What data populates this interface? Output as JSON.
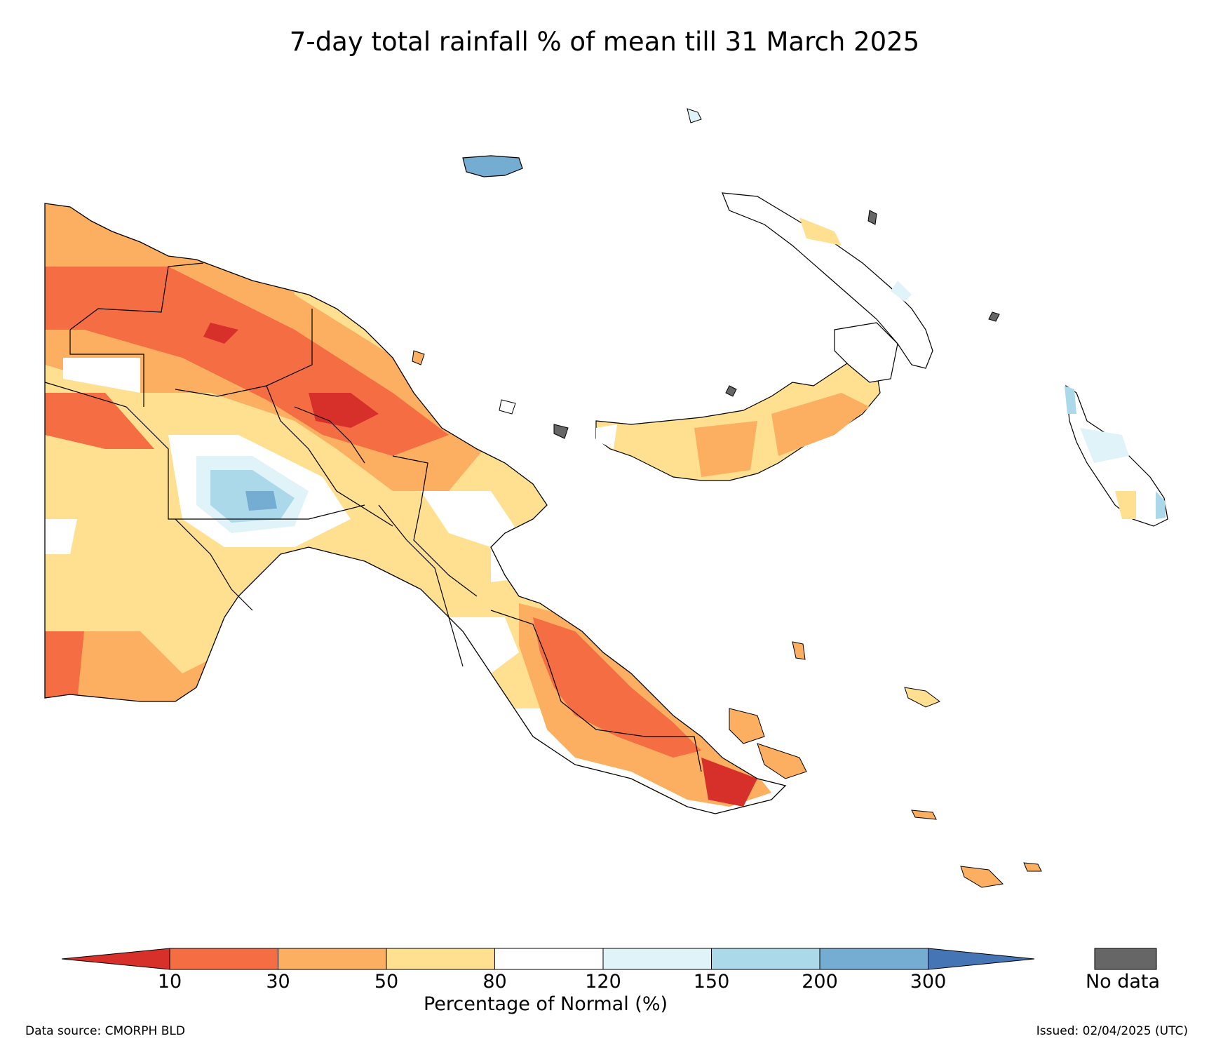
{
  "title": "7-day total rainfall % of mean till 31 March 2025",
  "colorbar": {
    "title": "Percentage of Normal (%)",
    "ticks": [
      "10",
      "30",
      "50",
      "80",
      "120",
      "150",
      "200",
      "300"
    ],
    "bins": [
      {
        "range": "<10",
        "color": "#d7302a"
      },
      {
        "range": "10-30",
        "color": "#f46d43"
      },
      {
        "range": "30-50",
        "color": "#fcae61"
      },
      {
        "range": "50-80",
        "color": "#fee090"
      },
      {
        "range": "80-120",
        "color": "#ffffff"
      },
      {
        "range": "120-150",
        "color": "#e0f3f8"
      },
      {
        "range": "150-200",
        "color": "#abd9e9"
      },
      {
        "range": "200-300",
        "color": "#74add1"
      },
      {
        "range": ">300",
        "color": "#4575b4"
      }
    ],
    "no_data_label": "No data",
    "no_data_color": "#666666"
  },
  "footer": {
    "source": "Data source: CMORPH BLD",
    "issued": "Issued: 02/04/2025 (UTC)"
  },
  "icons": [
    "map-land-mask",
    "province-boundary-lines"
  ]
}
